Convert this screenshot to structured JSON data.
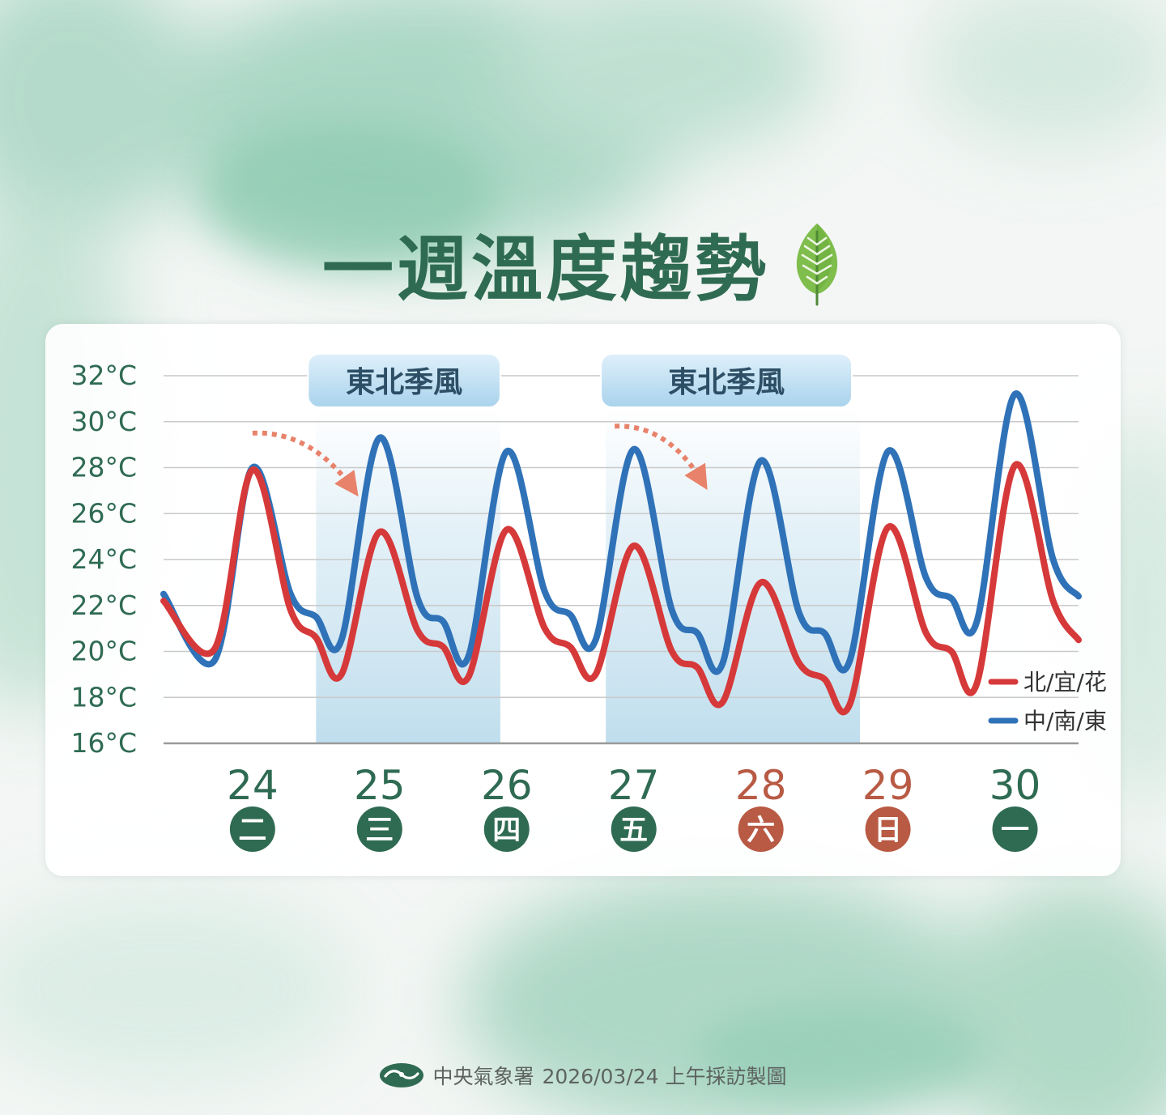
{
  "title": "一週溫度趨勢",
  "footer": {
    "agency": "中央氣象署",
    "caption": "2026/03/24 上午採訪製圖"
  },
  "colors": {
    "title": "#2f6b53",
    "north": "#d6393a",
    "south": "#2f72b8",
    "weekday_badge": "#2f6b53",
    "weekend_badge": "#b85a44",
    "weekend_date": "#b85a44",
    "weekday_date": "#2f6b53",
    "monsoon_band": "#cfe6f2",
    "arrow": "#e8826a"
  },
  "chart_data": {
    "type": "line",
    "ylim": [
      16,
      32
    ],
    "y_ticks": [
      32,
      30,
      28,
      26,
      24,
      22,
      20,
      18,
      16
    ],
    "y_tick_unit": "°C",
    "x_range": [
      23.3,
      30.5
    ],
    "days": [
      {
        "date": "24",
        "weekday": "二",
        "weekend": false
      },
      {
        "date": "25",
        "weekday": "三",
        "weekend": false
      },
      {
        "date": "26",
        "weekday": "四",
        "weekend": false
      },
      {
        "date": "27",
        "weekday": "五",
        "weekend": false
      },
      {
        "date": "28",
        "weekday": "六",
        "weekend": true
      },
      {
        "date": "29",
        "weekday": "日",
        "weekend": true
      },
      {
        "date": "30",
        "weekday": "一",
        "weekend": false
      }
    ],
    "legend_position": "bottom-right",
    "series": [
      {
        "name": "北/宜/花",
        "color": "#d6393a",
        "points": [
          [
            23.3,
            22.2
          ],
          [
            23.7,
            20.1
          ],
          [
            24.0,
            27.9
          ],
          [
            24.3,
            21.8
          ],
          [
            24.5,
            20.6
          ],
          [
            24.7,
            19.0
          ],
          [
            25.0,
            25.2
          ],
          [
            25.3,
            20.9
          ],
          [
            25.5,
            20.2
          ],
          [
            25.7,
            18.9
          ],
          [
            26.0,
            25.3
          ],
          [
            26.3,
            21.0
          ],
          [
            26.5,
            20.2
          ],
          [
            26.7,
            19.0
          ],
          [
            27.0,
            24.6
          ],
          [
            27.3,
            20.0
          ],
          [
            27.5,
            19.3
          ],
          [
            27.7,
            17.8
          ],
          [
            28.0,
            23.0
          ],
          [
            28.3,
            19.5
          ],
          [
            28.5,
            18.8
          ],
          [
            28.7,
            17.7
          ],
          [
            29.0,
            25.4
          ],
          [
            29.3,
            20.8
          ],
          [
            29.5,
            20.0
          ],
          [
            29.7,
            18.6
          ],
          [
            30.0,
            28.1
          ],
          [
            30.3,
            22.2
          ],
          [
            30.5,
            20.5
          ]
        ]
      },
      {
        "name": "中/南/東",
        "color": "#2f72b8",
        "points": [
          [
            23.3,
            22.5
          ],
          [
            23.7,
            19.6
          ],
          [
            24.0,
            28.0
          ],
          [
            24.3,
            22.5
          ],
          [
            24.5,
            21.5
          ],
          [
            24.7,
            20.5
          ],
          [
            25.0,
            29.3
          ],
          [
            25.3,
            22.3
          ],
          [
            25.5,
            21.3
          ],
          [
            25.7,
            19.8
          ],
          [
            26.0,
            28.7
          ],
          [
            26.3,
            22.6
          ],
          [
            26.5,
            21.6
          ],
          [
            26.7,
            20.5
          ],
          [
            27.0,
            28.8
          ],
          [
            27.3,
            21.8
          ],
          [
            27.5,
            20.8
          ],
          [
            27.7,
            19.5
          ],
          [
            28.0,
            28.3
          ],
          [
            28.3,
            21.7
          ],
          [
            28.5,
            20.8
          ],
          [
            28.7,
            19.6
          ],
          [
            29.0,
            28.7
          ],
          [
            29.3,
            23.2
          ],
          [
            29.5,
            22.3
          ],
          [
            29.7,
            21.3
          ],
          [
            30.0,
            31.2
          ],
          [
            30.3,
            24.0
          ],
          [
            30.5,
            22.4
          ]
        ]
      }
    ],
    "annotations": [
      {
        "text": "東北季風",
        "band_x": [
          24.5,
          25.95
        ]
      },
      {
        "text": "東北季風",
        "band_x": [
          26.78,
          28.78
        ]
      }
    ],
    "trend_arrows": [
      {
        "from": [
          24.0,
          29.5
        ],
        "to": [
          24.8,
          27.0
        ]
      },
      {
        "from": [
          26.85,
          29.8
        ],
        "to": [
          27.55,
          27.3
        ]
      }
    ]
  }
}
